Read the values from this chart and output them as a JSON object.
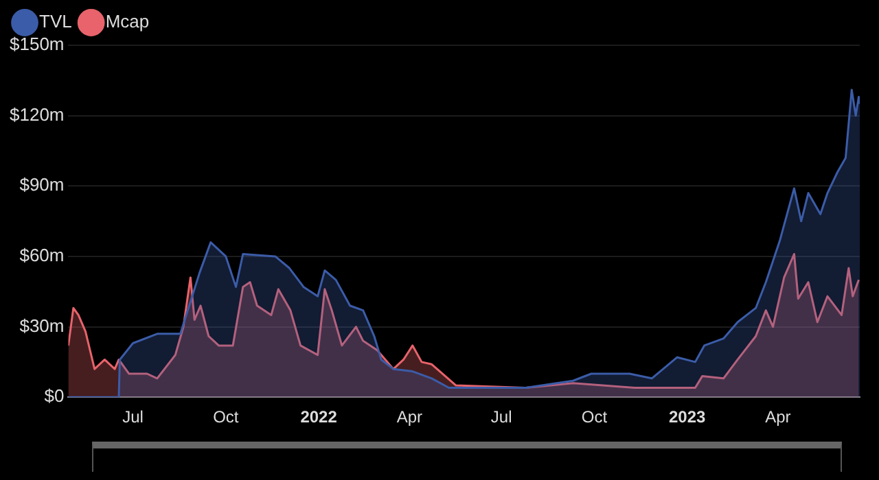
{
  "chart_data": {
    "type": "area",
    "series": [
      {
        "name": "TVL",
        "color": "#3b5ca8",
        "x": [
          "2021-04-28",
          "2021-06-17",
          "2021-06-18",
          "2021-07-01",
          "2021-07-25",
          "2021-08-17",
          "2021-09-05",
          "2021-09-16",
          "2021-10-01",
          "2021-10-11",
          "2021-10-18",
          "2021-11-19",
          "2021-12-03",
          "2021-12-17",
          "2021-12-31",
          "2022-01-07",
          "2022-01-18",
          "2022-02-01",
          "2022-02-14",
          "2022-02-25",
          "2022-03-04",
          "2022-03-16",
          "2022-04-04",
          "2022-04-23",
          "2022-05-10",
          "2022-07-25",
          "2022-09-10",
          "2022-09-28",
          "2022-11-05",
          "2022-11-27",
          "2022-12-22",
          "2023-01-09",
          "2023-01-18",
          "2023-02-06",
          "2023-02-20",
          "2023-03-10",
          "2023-03-20",
          "2023-04-03",
          "2023-04-17",
          "2023-04-24",
          "2023-05-01",
          "2023-05-13",
          "2023-05-20",
          "2023-05-30",
          "2023-06-07",
          "2023-06-13",
          "2023-06-17",
          "2023-06-20",
          "2023-06-21"
        ],
        "values": [
          0,
          0,
          16,
          23,
          27,
          27,
          53,
          66,
          60,
          47,
          61,
          60,
          55,
          47,
          43,
          54,
          50,
          39,
          37,
          26,
          16,
          12,
          11,
          8,
          4,
          4,
          7,
          10,
          10,
          8,
          17,
          15,
          22,
          25,
          32,
          38,
          49,
          67,
          89,
          75,
          87,
          78,
          87,
          96,
          102,
          131,
          120,
          128,
          125
        ]
      },
      {
        "name": "Mcap",
        "color": "#e8636b",
        "x": [
          "2021-04-28",
          "2021-05-03",
          "2021-05-08",
          "2021-05-15",
          "2021-05-24",
          "2021-06-03",
          "2021-06-13",
          "2021-06-17",
          "2021-06-27",
          "2021-07-15",
          "2021-07-25",
          "2021-08-12",
          "2021-08-20",
          "2021-08-27",
          "2021-08-31",
          "2021-09-06",
          "2021-09-14",
          "2021-09-24",
          "2021-10-08",
          "2021-10-18",
          "2021-10-25",
          "2021-11-01",
          "2021-11-15",
          "2021-11-22",
          "2021-12-04",
          "2021-12-14",
          "2021-12-31",
          "2022-01-07",
          "2022-01-14",
          "2022-01-24",
          "2022-02-07",
          "2022-02-14",
          "2022-02-28",
          "2022-03-16",
          "2022-03-26",
          "2022-04-04",
          "2022-04-13",
          "2022-04-23",
          "2022-05-17",
          "2022-07-25",
          "2022-09-10",
          "2022-11-10",
          "2023-01-09",
          "2023-01-16",
          "2023-02-06",
          "2023-02-20",
          "2023-03-10",
          "2023-03-20",
          "2023-03-27",
          "2023-04-07",
          "2023-04-17",
          "2023-04-21",
          "2023-05-01",
          "2023-05-10",
          "2023-05-20",
          "2023-06-03",
          "2023-06-10",
          "2023-06-14",
          "2023-06-20"
        ],
        "values": [
          22,
          38,
          35,
          28,
          12,
          16,
          12,
          16,
          10,
          10,
          8,
          18,
          30,
          51,
          33,
          39,
          26,
          22,
          22,
          47,
          49,
          39,
          35,
          46,
          37,
          22,
          18,
          46,
          37,
          22,
          30,
          24,
          20,
          12,
          16,
          22,
          15,
          14,
          5,
          4,
          6,
          4,
          4,
          9,
          8,
          16,
          26,
          37,
          30,
          51,
          61,
          42,
          49,
          32,
          43,
          35,
          55,
          43,
          50
        ]
      }
    ],
    "xlim": [
      "2021-04-28",
      "2023-06-21"
    ],
    "xticks": [
      {
        "value": "2021-07-01",
        "label": "Jul"
      },
      {
        "value": "2021-10-01",
        "label": "Oct"
      },
      {
        "value": "2022-01-01",
        "label": "2022"
      },
      {
        "value": "2022-04-01",
        "label": "Apr"
      },
      {
        "value": "2022-07-01",
        "label": "Jul"
      },
      {
        "value": "2022-10-01",
        "label": "Oct"
      },
      {
        "value": "2023-01-01",
        "label": "2023"
      },
      {
        "value": "2023-04-01",
        "label": "Apr"
      }
    ],
    "ylim": [
      0,
      150
    ],
    "yticks": [
      {
        "value": 0,
        "label": "$0"
      },
      {
        "value": 30,
        "label": "$30m"
      },
      {
        "value": 60,
        "label": "$60m"
      },
      {
        "value": 90,
        "label": "$90m"
      },
      {
        "value": 120,
        "label": "$120m"
      },
      {
        "value": 150,
        "label": "$150m"
      }
    ],
    "grid": "y",
    "legend": "top left",
    "marker": "none",
    "line_style": "solid"
  }
}
